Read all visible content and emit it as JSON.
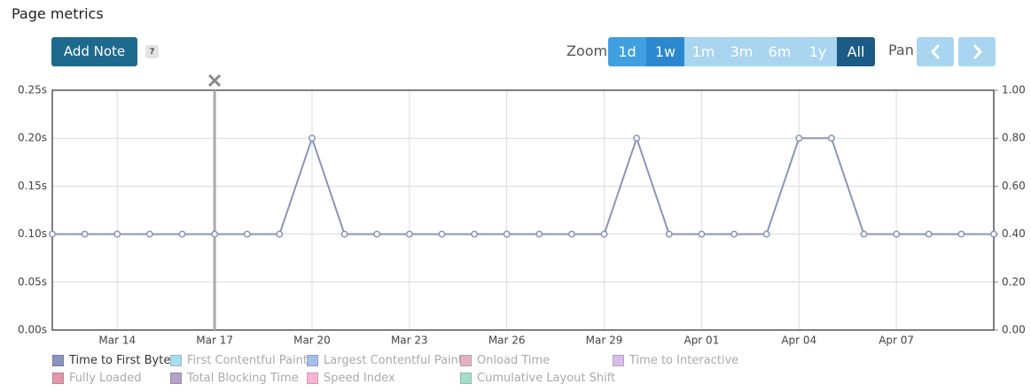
{
  "header": {
    "title": "Page metrics",
    "add_note": "Add Note",
    "help": "?"
  },
  "toolbar": {
    "zoom_label": "Zoom",
    "zoom_options": [
      {
        "label": "1d",
        "state": "enabled"
      },
      {
        "label": "1w",
        "state": "hover"
      },
      {
        "label": "1m",
        "state": "disabled"
      },
      {
        "label": "3m",
        "state": "disabled"
      },
      {
        "label": "6m",
        "state": "disabled"
      },
      {
        "label": "1y",
        "state": "disabled"
      },
      {
        "label": "All",
        "state": "active"
      }
    ],
    "pan_label": "Pan"
  },
  "chart_data": {
    "type": "line",
    "x": [
      "Mar 12",
      "Mar 13",
      "Mar 14",
      "Mar 15",
      "Mar 16",
      "Mar 17",
      "Mar 18",
      "Mar 19",
      "Mar 20",
      "Mar 21",
      "Mar 22",
      "Mar 23",
      "Mar 24",
      "Mar 25",
      "Mar 26",
      "Mar 27",
      "Mar 28",
      "Mar 29",
      "Mar 30",
      "Mar 31",
      "Apr 01",
      "Apr 02",
      "Apr 03",
      "Apr 04",
      "Apr 05",
      "Apr 06",
      "Apr 07",
      "Apr 08",
      "Apr 09",
      "Apr 10"
    ],
    "xticks": [
      "Mar 14",
      "Mar 17",
      "Mar 20",
      "Mar 23",
      "Mar 26",
      "Mar 29",
      "Apr 01",
      "Apr 04",
      "Apr 07"
    ],
    "ylim": [
      0,
      0.25
    ],
    "yticks": [
      {
        "value": 0,
        "label": "0.00s"
      },
      {
        "value": 0.05,
        "label": "0.05s"
      },
      {
        "value": 0.1,
        "label": "0.10s"
      },
      {
        "value": 0.15,
        "label": "0.15s"
      },
      {
        "value": 0.2,
        "label": "0.20s"
      },
      {
        "value": 0.25,
        "label": "0.25s"
      }
    ],
    "y2lim": [
      0,
      1
    ],
    "y2ticks": [
      {
        "value": 0,
        "label": "0.00"
      },
      {
        "value": 0.2,
        "label": "0.20"
      },
      {
        "value": 0.4,
        "label": "0.40"
      },
      {
        "value": 0.6,
        "label": "0.60"
      },
      {
        "value": 0.8,
        "label": "0.80"
      },
      {
        "value": 1,
        "label": "1.00"
      }
    ],
    "grid": true,
    "notes": [
      {
        "x": "Mar 17"
      }
    ],
    "series": [
      {
        "name": "Time to First Byte",
        "color": "#8a94bd",
        "visible": true,
        "values": [
          0.1,
          0.1,
          0.1,
          0.1,
          0.1,
          0.1,
          0.1,
          0.1,
          0.2,
          0.1,
          0.1,
          0.1,
          0.1,
          0.1,
          0.1,
          0.1,
          0.1,
          0.1,
          0.2,
          0.1,
          0.1,
          0.1,
          0.1,
          0.2,
          0.2,
          0.1,
          0.1,
          0.1,
          0.1,
          0.1
        ]
      },
      {
        "name": "First Contentful Paint",
        "color": "#a9dcf2",
        "visible": false
      },
      {
        "name": "Largest Contentful Paint",
        "color": "#a7bdea",
        "visible": false
      },
      {
        "name": "Onload Time",
        "color": "#e2b3c4",
        "visible": false
      },
      {
        "name": "Time to Interactive",
        "color": "#d9bde9",
        "visible": false
      },
      {
        "name": "Fully Loaded",
        "color": "#e494ad",
        "visible": false
      },
      {
        "name": "Total Blocking Time",
        "color": "#b5a2c5",
        "visible": false
      },
      {
        "name": "Speed Index",
        "color": "#f7b4d3",
        "visible": false
      },
      {
        "name": "Cumulative Layout Shift",
        "color": "#a4decb",
        "visible": false
      }
    ]
  }
}
